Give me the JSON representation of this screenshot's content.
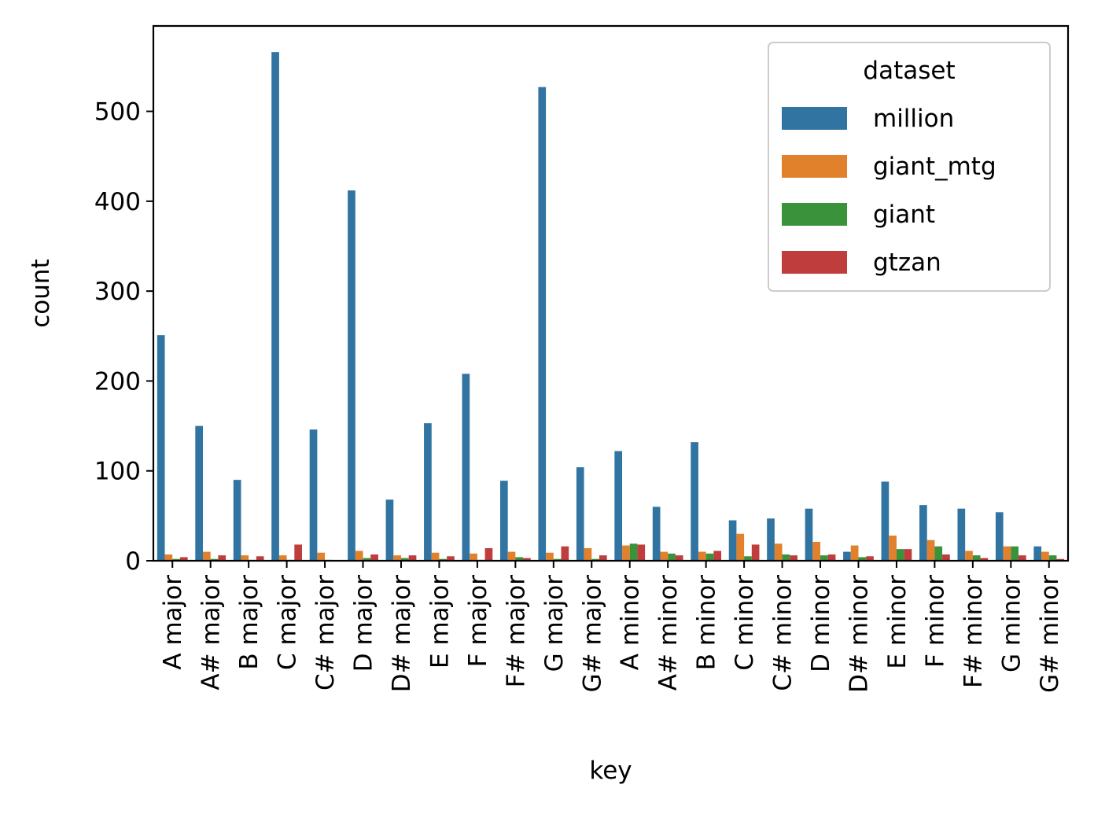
{
  "chart_data": {
    "type": "bar",
    "xlabel": "key",
    "ylabel": "count",
    "ylim": [
      0,
      595
    ],
    "yticks": [
      0,
      100,
      200,
      300,
      400,
      500
    ],
    "grid": false,
    "legend": {
      "title": "dataset",
      "placement": "top-right"
    },
    "categories": [
      "A major",
      "A# major",
      "B major",
      "C major",
      "C# major",
      "D major",
      "D# major",
      "E major",
      "F major",
      "F# major",
      "G major",
      "G# major",
      "A minor",
      "A# minor",
      "B minor",
      "C minor",
      "C# minor",
      "D minor",
      "D# minor",
      "E minor",
      "F minor",
      "F# minor",
      "G minor",
      "G# minor"
    ],
    "series": [
      {
        "name": "million",
        "color": "#3274a1",
        "values": [
          251,
          150,
          90,
          566,
          146,
          412,
          68,
          153,
          208,
          89,
          527,
          104,
          122,
          60,
          132,
          45,
          47,
          58,
          10,
          88,
          62,
          58,
          54,
          16
        ]
      },
      {
        "name": "giant_mtg",
        "color": "#e1812c",
        "values": [
          7,
          10,
          6,
          6,
          9,
          11,
          6,
          9,
          8,
          10,
          9,
          14,
          17,
          10,
          10,
          30,
          19,
          21,
          17,
          28,
          23,
          11,
          16,
          10
        ]
      },
      {
        "name": "giant",
        "color": "#3a923a",
        "values": [
          2,
          2,
          1,
          1,
          1,
          3,
          3,
          2,
          1,
          4,
          2,
          2,
          19,
          8,
          8,
          5,
          7,
          6,
          4,
          13,
          16,
          6,
          16,
          6
        ]
      },
      {
        "name": "gtzan",
        "color": "#c03d3e",
        "values": [
          4,
          6,
          5,
          18,
          0,
          7,
          6,
          5,
          14,
          3,
          16,
          6,
          18,
          6,
          11,
          18,
          6,
          7,
          5,
          13,
          7,
          3,
          6,
          2
        ]
      }
    ]
  }
}
